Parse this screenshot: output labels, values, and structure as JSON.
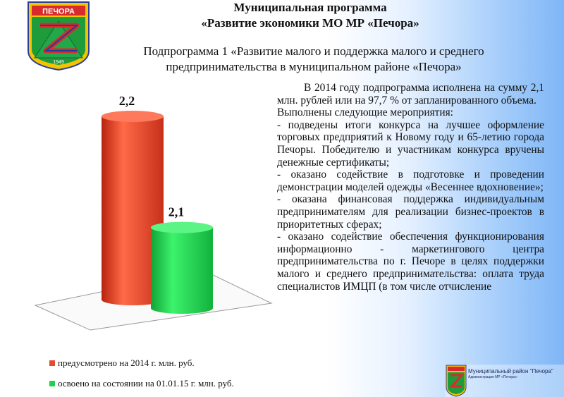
{
  "header": {
    "title_line1": "Муниципальная программа",
    "title_line2": "«Развитие экономики МО МР «Печора»",
    "emblem": {
      "banner_text": "ПЕЧОРА",
      "year_text": "1949",
      "icon": "coat-of-arms-icon"
    }
  },
  "subtitle": {
    "line1": "Подпрограмма 1  «Развитие малого и поддержка малого и среднего",
    "line2": "предпринимательства в муниципальном районе «Печора»"
  },
  "chart_data": {
    "type": "bar",
    "style": "3d-cylinder",
    "categories": [
      "предусмотрено на 2014 г. млн. руб.",
      "освоено на состоянии на 01.01.15 г. млн. руб."
    ],
    "values": [
      2.2,
      2.1
    ],
    "data_labels": [
      "2,2",
      "2,1"
    ],
    "colors": [
      "#e84a2c",
      "#1fd24e"
    ],
    "legend": "bottom-left",
    "ylim": [
      0,
      2.2
    ],
    "grid": false
  },
  "legend": {
    "items": [
      {
        "label": "предусмотрено на 2014 г. млн. руб.",
        "color": "#e84a2c"
      },
      {
        "label": "освоено на состоянии на 01.01.15 г. млн. руб.",
        "color": "#1fd24e"
      }
    ]
  },
  "body_text": {
    "intro": "В 2014 году подпрограмма исполнена на сумму 2,1 млн. рублей или на 97,7 % от запланированного объема.",
    "list_title": "Выполнены следующие мероприятия:",
    "items": [
      "- подведены итоги конкурса на лучшее оформление торговых предприятий к Новому году и 65-летию города Печоры. Победителю и участникам конкурса вручены денежные сертификаты;",
      "- оказано содействие в подготовке и проведении демонстрации моделей одежды «Весеннее вдохновение»;",
      "- оказана финансовая поддержка индивидуальным предпринимателям для реализации бизнес-проектов в приоритетных сферах;",
      "- оказано содействие обеспечения функционирования информационно - маркетингового центра предпринимательства по г. Печоре в целях поддержки малого и среднего предпринимательства: оплата труда специалистов ИМЦП (в том числе отчисление"
    ]
  },
  "footer_badge": {
    "label": "Муниципальный район \"Печора\"",
    "sublabel": "Администрация МР «Печора»",
    "icon": "coat-of-arms-icon"
  }
}
